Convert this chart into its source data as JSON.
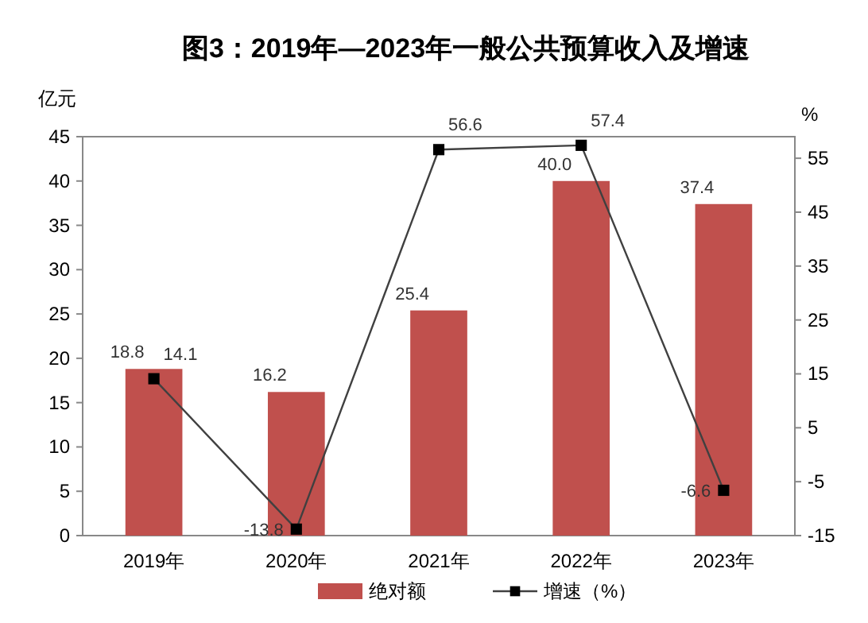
{
  "chart_data": {
    "type": "bar",
    "title": "图3：2019年—2023年一般公共预算收入及增速",
    "ylabel": "亿元",
    "y2label": "%",
    "categories": [
      "2019年",
      "2020年",
      "2021年",
      "2022年",
      "2023年"
    ],
    "series": [
      {
        "name": "绝对额",
        "color": "#c0504d",
        "values": [
          18.8,
          16.2,
          25.4,
          40.0,
          37.4
        ],
        "value_labels": [
          "18.8",
          "16.2",
          "25.4",
          "40.0",
          "37.4"
        ]
      },
      {
        "name": "增速（%）",
        "type": "line",
        "axis": "y2",
        "color": "#404040",
        "marker": "square",
        "values": [
          14.1,
          -13.8,
          56.6,
          57.4,
          -6.6
        ],
        "value_labels": [
          "14.1",
          "-13.8",
          "56.6",
          "57.4",
          "-6.6"
        ]
      }
    ],
    "ylim": [
      0,
      45
    ],
    "yticks": [
      0,
      5,
      10,
      15,
      20,
      25,
      30,
      35,
      40,
      45
    ],
    "y2lim": [
      -15,
      59
    ],
    "y2ticks": [
      -15,
      -5,
      5,
      15,
      25,
      35,
      45,
      55
    ],
    "grid": false,
    "legend": "bottom"
  }
}
